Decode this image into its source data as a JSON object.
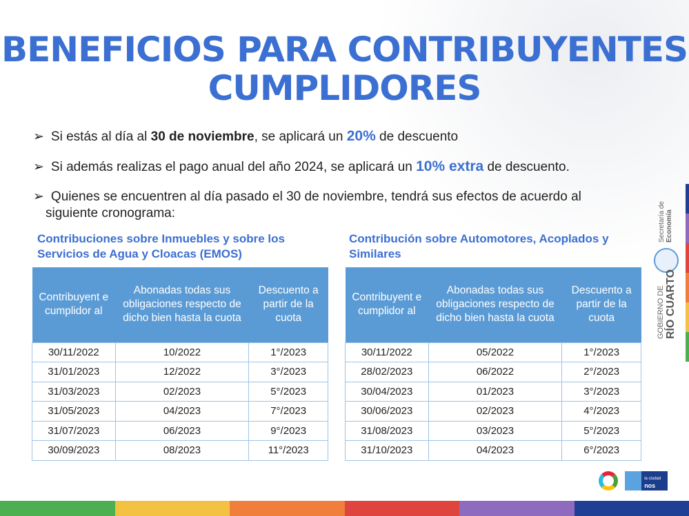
{
  "title": [
    "BENEFICIOS PARA CONTRIBUYENTES",
    "CUMPLIDORES"
  ],
  "bullets": [
    {
      "pre": "Si estás al día al ",
      "bold": "30 de noviembre",
      "mid": ", se aplicará un ",
      "hl": "20%",
      "post": " de descuento"
    },
    {
      "pre": "Si además realizas el pago anual del año 2024, se aplicará un ",
      "hl": "10% extra",
      "post": " de descuento."
    },
    {
      "text": "Quienes se encuentren al día pasado el 30 de noviembre, tendrá sus efectos de acuerdo al",
      "text2": "siguiente cronograma:"
    }
  ],
  "bullet_icon": "arrowhead",
  "tables": [
    {
      "title": [
        "Contribuciones sobre Inmuebles y sobre los",
        "Servicios de Agua y Cloacas (EMOS)"
      ],
      "headers": [
        "Contribuyent e cumplidor al",
        "Abonadas todas sus obligaciones respecto de dicho bien hasta la cuota",
        "Descuento a partir de la cuota"
      ],
      "rows": [
        [
          "30/11/2022",
          "10/2022",
          "1°/2023"
        ],
        [
          "31/01/2023",
          "12/2022",
          "3°/2023"
        ],
        [
          "31/03/2023",
          "02/2023",
          "5°/2023"
        ],
        [
          "31/05/2023",
          "04/2023",
          "7°/2023"
        ],
        [
          "31/07/2023",
          "06/2023",
          "9°/2023"
        ],
        [
          "30/09/2023",
          "08/2023",
          "11°/2023"
        ]
      ]
    },
    {
      "title": [
        "Contribución sobre Automotores, Acoplados y",
        "Similares"
      ],
      "headers": [
        "Contribuyent e cumplidor al",
        "Abonadas todas sus obligaciones respecto de dicho bien hasta la cuota",
        "Descuento a partir de la cuota"
      ],
      "rows": [
        [
          "30/11/2022",
          "05/2022",
          "1°/2023"
        ],
        [
          "28/02/2023",
          "06/2022",
          "2°/2023"
        ],
        [
          "30/04/2023",
          "01/2023",
          "3°/2023"
        ],
        [
          "30/06/2023",
          "02/2023",
          "4°/2023"
        ],
        [
          "31/08/2023",
          "03/2023",
          "5°/2023"
        ],
        [
          "31/10/2023",
          "04/2023",
          "6°/2023"
        ]
      ]
    }
  ],
  "branding": {
    "secretaria": "Secretaría de",
    "economia": "Economía",
    "gobierno": "GOBIERNO DE",
    "rio_cuarto": "RÍO CUARTO",
    "nos_une": "nos une",
    "la_ciudad": "la ciudad"
  },
  "colors": {
    "accent": "#3b6fd1",
    "header": "#5b9bd5",
    "stripes": [
      "#4caf50",
      "#f4c242",
      "#ef7f3a",
      "#e0443e",
      "#8e6bbf",
      "#1f3f95"
    ]
  }
}
